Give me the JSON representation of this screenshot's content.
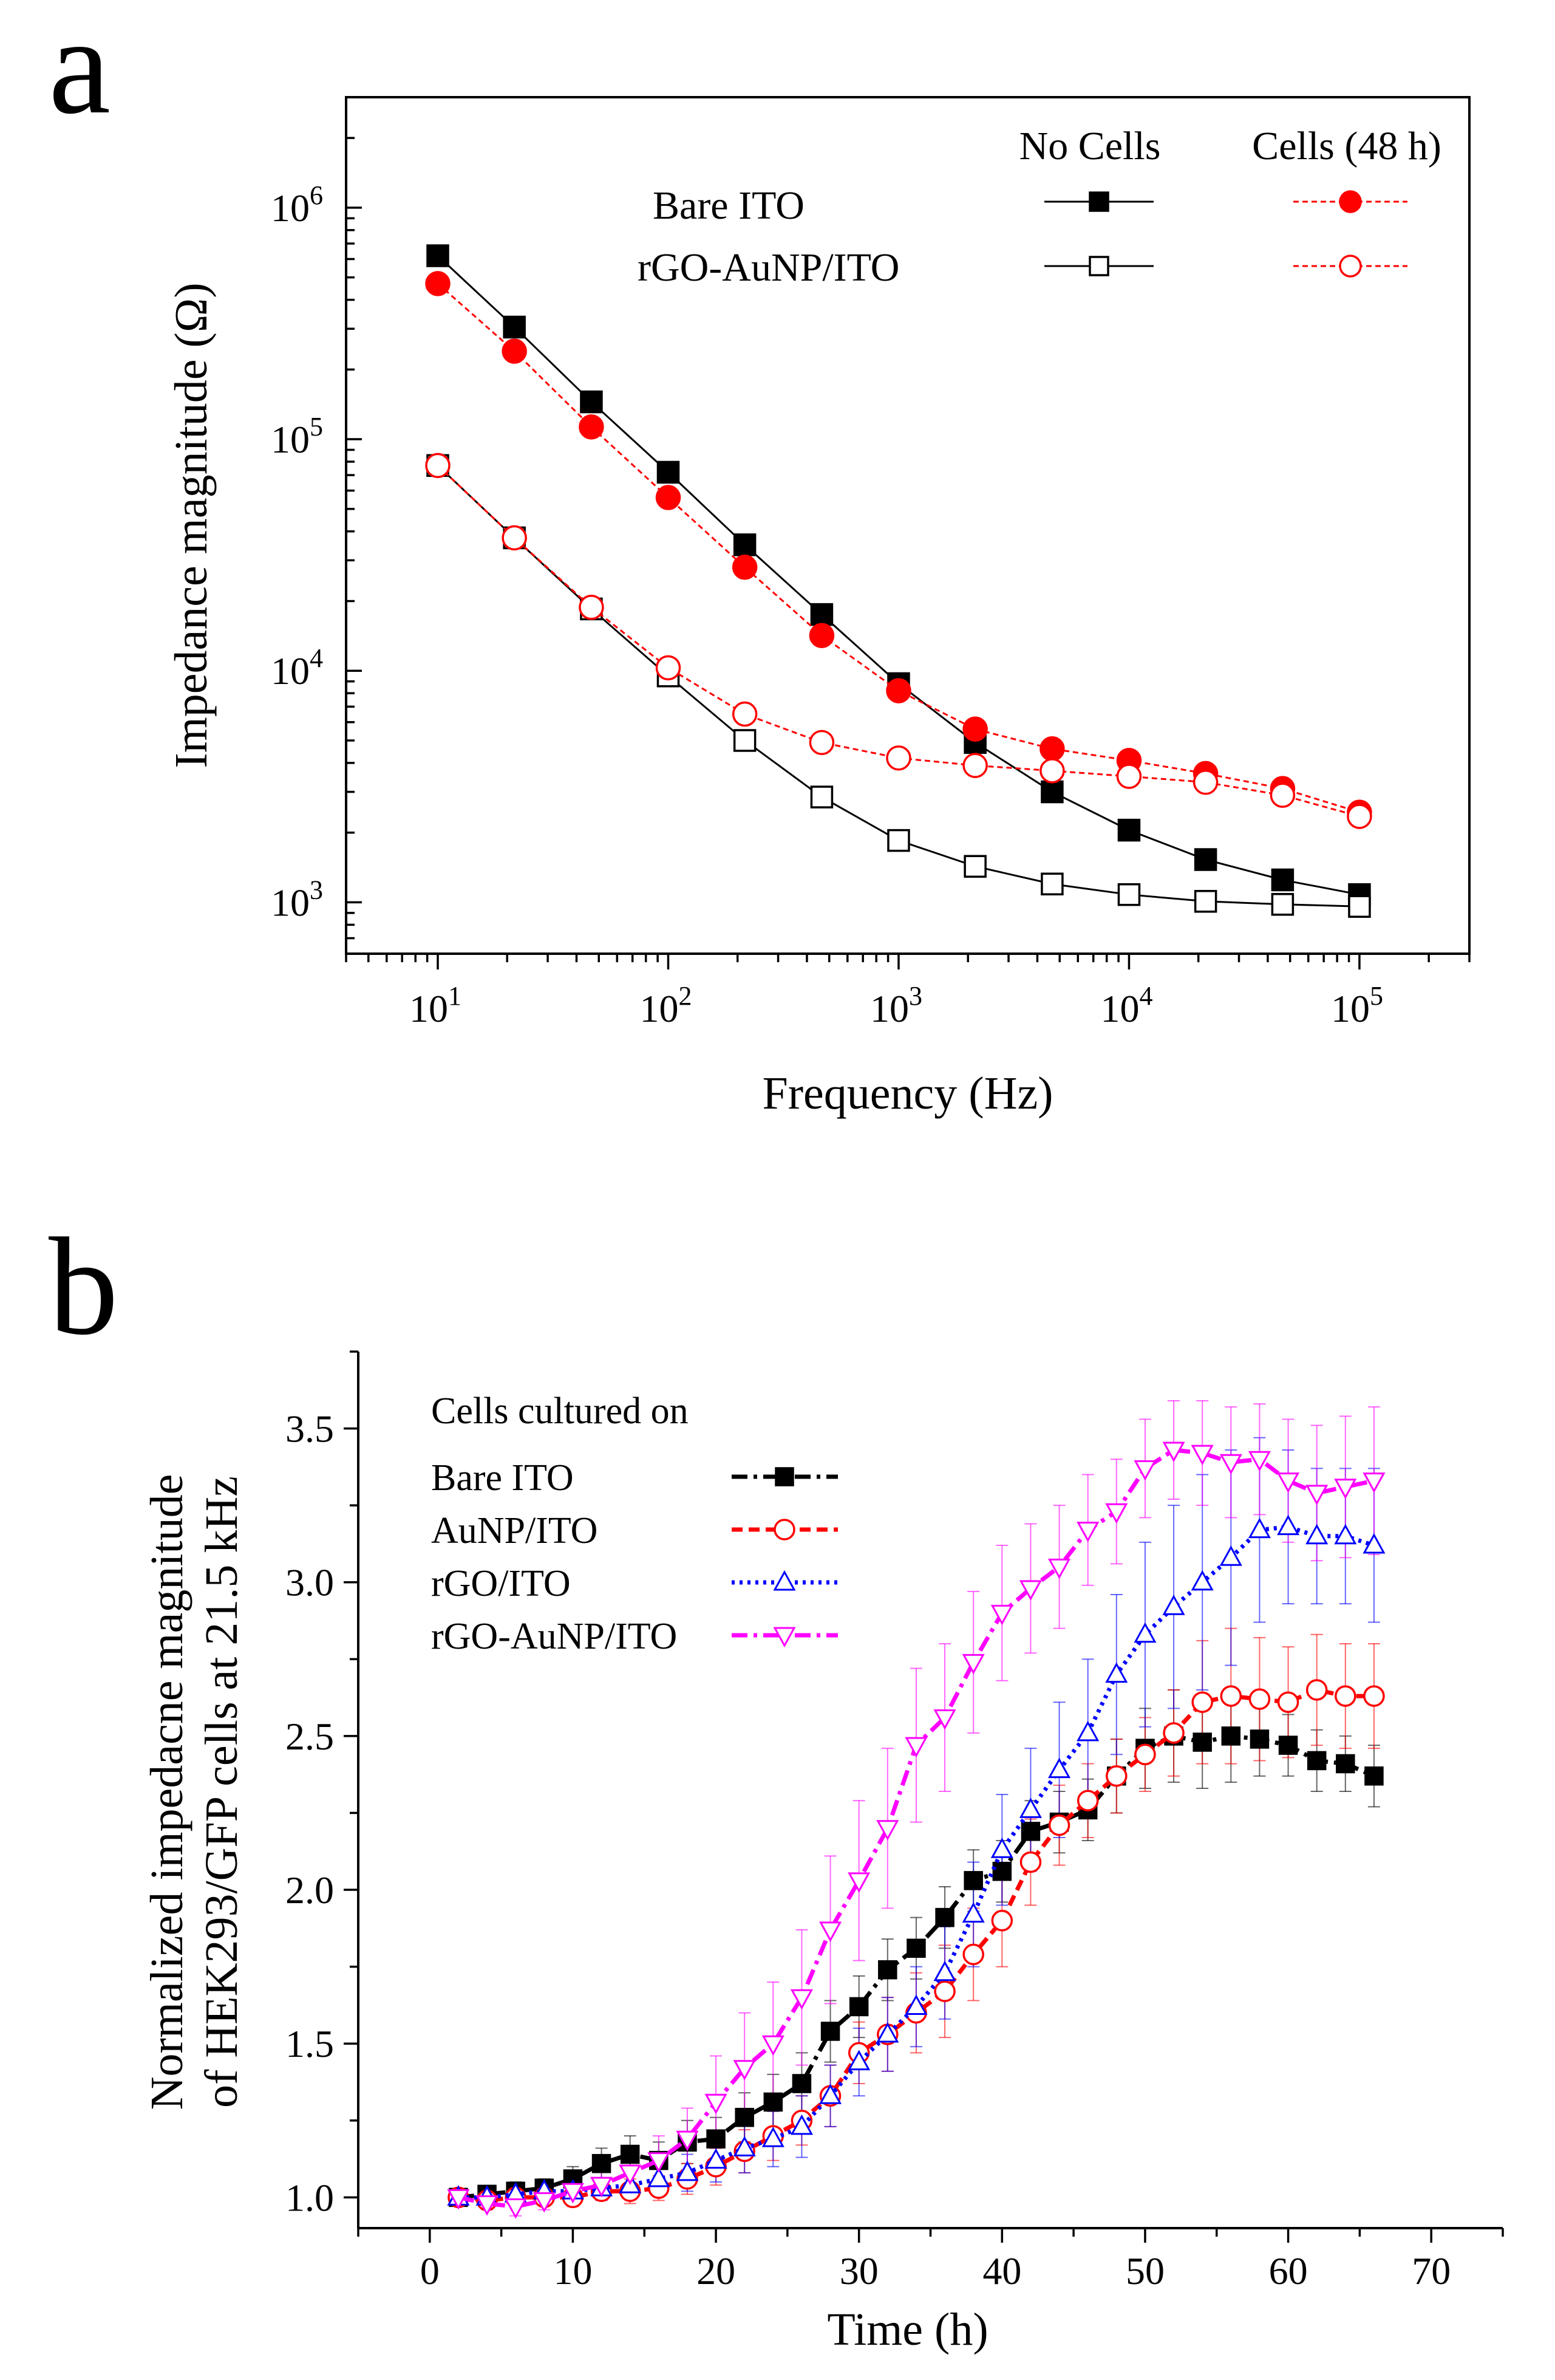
{
  "chart_data": [
    {
      "panel": "a",
      "type": "line",
      "xscale": "log",
      "yscale": "log",
      "xlabel": "Frequency (Hz)",
      "ylabel": "Impedance magnitude (Ω)",
      "xlim": [
        4,
        300000
      ],
      "ylim": [
        600,
        3000000
      ],
      "x_ticks": [
        {
          "value": 10,
          "base": "10",
          "exp": "1"
        },
        {
          "value": 100,
          "base": "10",
          "exp": "2"
        },
        {
          "value": 1000,
          "base": "10",
          "exp": "3"
        },
        {
          "value": 10000,
          "base": "10",
          "exp": "4"
        },
        {
          "value": 100000,
          "base": "10",
          "exp": "5"
        }
      ],
      "y_ticks": [
        {
          "value": 1000,
          "base": "10",
          "exp": "3"
        },
        {
          "value": 10000,
          "base": "10",
          "exp": "4"
        },
        {
          "value": 100000,
          "base": "10",
          "exp": "5"
        },
        {
          "value": 1000000,
          "base": "10",
          "exp": "6"
        }
      ],
      "legend": {
        "col_headers": [
          "No Cells",
          "Cells (48 h)"
        ],
        "row_labels": [
          "Bare ITO",
          "rGO-AuNP/ITO"
        ]
      },
      "x": [
        10,
        21.5,
        46.4,
        100,
        215,
        464,
        1000,
        2150,
        4640,
        10000,
        21500,
        46400,
        100000
      ],
      "series": [
        {
          "name": "Bare ITO - No Cells",
          "color": "#000000",
          "marker": "square-filled",
          "dash": "solid",
          "values": [
            620000,
            305000,
            145000,
            72000,
            35000,
            17500,
            8800,
            4900,
            3000,
            2050,
            1530,
            1250,
            1080
          ]
        },
        {
          "name": "rGO-AuNP/ITO - No Cells",
          "color": "#000000",
          "marker": "square-open",
          "dash": "solid",
          "values": [
            77000,
            37500,
            18500,
            9500,
            5000,
            2850,
            1850,
            1430,
            1200,
            1080,
            1010,
            980,
            960
          ]
        },
        {
          "name": "Bare ITO - Cells (48 h)",
          "color": "#ff0000",
          "marker": "circle-filled",
          "dash": "dashed",
          "values": [
            470000,
            240000,
            113000,
            56000,
            28000,
            14200,
            8200,
            5600,
            4600,
            4100,
            3600,
            3100,
            2450
          ]
        },
        {
          "name": "rGO-AuNP/ITO - Cells (48 h)",
          "color": "#ff0000",
          "marker": "circle-open",
          "dash": "dashed",
          "values": [
            77000,
            37500,
            18800,
            10300,
            6500,
            4900,
            4200,
            3900,
            3700,
            3500,
            3300,
            2900,
            2350
          ]
        }
      ]
    },
    {
      "panel": "b",
      "type": "line",
      "xlabel": "Time (h)",
      "ylabel_lines": [
        "Normalized impedacne magnitude",
        "of HEK293/GFP cells at 21.5 kHz"
      ],
      "xlim": [
        -5,
        75
      ],
      "ylim": [
        0.9,
        3.75
      ],
      "x_ticks": [
        "0",
        "10",
        "20",
        "30",
        "40",
        "50",
        "60",
        "70"
      ],
      "y_ticks": [
        "1.0",
        "1.5",
        "2.0",
        "2.5",
        "3.0",
        "3.5"
      ],
      "legend_title": "Cells cultured on",
      "x": [
        2,
        4,
        6,
        8,
        10,
        12,
        14,
        16,
        18,
        20,
        22,
        24,
        26,
        28,
        30,
        32,
        34,
        36,
        38,
        40,
        42,
        44,
        46,
        48,
        50,
        52,
        54,
        56,
        58,
        60,
        62,
        64,
        66
      ],
      "series": [
        {
          "name": "Bare ITO",
          "color": "#000000",
          "marker": "square-filled",
          "dash": "dashdot",
          "values": [
            1.0,
            1.01,
            1.02,
            1.03,
            1.06,
            1.11,
            1.14,
            1.12,
            1.18,
            1.19,
            1.26,
            1.31,
            1.37,
            1.54,
            1.62,
            1.74,
            1.81,
            1.91,
            2.03,
            2.06,
            2.19,
            2.22,
            2.26,
            2.37,
            2.46,
            2.5,
            2.48,
            2.5,
            2.49,
            2.47,
            2.42,
            2.41,
            2.37
          ],
          "errors": [
            0.02,
            0.02,
            0.03,
            0.03,
            0.04,
            0.05,
            0.06,
            0.06,
            0.07,
            0.07,
            0.08,
            0.09,
            0.1,
            0.1,
            0.1,
            0.1,
            0.1,
            0.1,
            0.1,
            0.1,
            0.1,
            0.1,
            0.1,
            0.12,
            0.13,
            0.15,
            0.15,
            0.15,
            0.12,
            0.1,
            0.1,
            0.09,
            0.1
          ]
        },
        {
          "name": "AuNP/ITO",
          "color": "#ff0000",
          "marker": "circle-open",
          "dash": "dashed",
          "values": [
            1.0,
            0.99,
            1.0,
            1.0,
            1.0,
            1.02,
            1.02,
            1.03,
            1.06,
            1.1,
            1.15,
            1.2,
            1.25,
            1.33,
            1.47,
            1.53,
            1.6,
            1.67,
            1.79,
            1.9,
            2.09,
            2.21,
            2.29,
            2.37,
            2.44,
            2.51,
            2.61,
            2.63,
            2.62,
            2.61,
            2.65,
            2.63,
            2.63
          ],
          "errors": [
            0.02,
            0.02,
            0.02,
            0.02,
            0.03,
            0.03,
            0.04,
            0.04,
            0.05,
            0.06,
            0.07,
            0.08,
            0.08,
            0.1,
            0.1,
            0.12,
            0.13,
            0.15,
            0.15,
            0.15,
            0.14,
            0.13,
            0.12,
            0.12,
            0.12,
            0.14,
            0.2,
            0.22,
            0.2,
            0.18,
            0.18,
            0.17,
            0.17
          ]
        },
        {
          "name": "rGO/ITO",
          "color": "#0000ff",
          "marker": "triangle-up-open",
          "dash": "dotted",
          "values": [
            1.0,
            1.0,
            1.01,
            1.02,
            1.02,
            1.03,
            1.04,
            1.06,
            1.08,
            1.12,
            1.16,
            1.19,
            1.23,
            1.33,
            1.44,
            1.53,
            1.62,
            1.73,
            1.92,
            2.13,
            2.26,
            2.39,
            2.51,
            2.7,
            2.83,
            2.92,
            3.0,
            3.08,
            3.17,
            3.18,
            3.15,
            3.15,
            3.12
          ],
          "errors": [
            0.02,
            0.02,
            0.02,
            0.02,
            0.03,
            0.03,
            0.04,
            0.05,
            0.06,
            0.07,
            0.08,
            0.09,
            0.1,
            0.1,
            0.11,
            0.12,
            0.13,
            0.15,
            0.17,
            0.18,
            0.2,
            0.22,
            0.24,
            0.26,
            0.3,
            0.33,
            0.35,
            0.35,
            0.3,
            0.25,
            0.22,
            0.22,
            0.25
          ]
        },
        {
          "name": "rGO-AuNP/ITO",
          "color": "#ff00ff",
          "marker": "triangle-down-open",
          "dash": "dashdot",
          "values": [
            1.0,
            0.98,
            0.97,
            0.99,
            1.02,
            1.04,
            1.08,
            1.12,
            1.19,
            1.31,
            1.42,
            1.5,
            1.65,
            1.87,
            2.03,
            2.2,
            2.47,
            2.56,
            2.74,
            2.9,
            2.98,
            3.05,
            3.17,
            3.23,
            3.37,
            3.43,
            3.42,
            3.39,
            3.4,
            3.33,
            3.29,
            3.31,
            3.33
          ],
          "errors": [
            0.02,
            0.02,
            0.03,
            0.03,
            0.04,
            0.05,
            0.06,
            0.08,
            0.1,
            0.15,
            0.18,
            0.2,
            0.22,
            0.24,
            0.26,
            0.26,
            0.25,
            0.24,
            0.23,
            0.22,
            0.21,
            0.2,
            0.18,
            0.17,
            0.16,
            0.16,
            0.17,
            0.18,
            0.18,
            0.2,
            0.22,
            0.23,
            0.24
          ]
        }
      ]
    }
  ]
}
